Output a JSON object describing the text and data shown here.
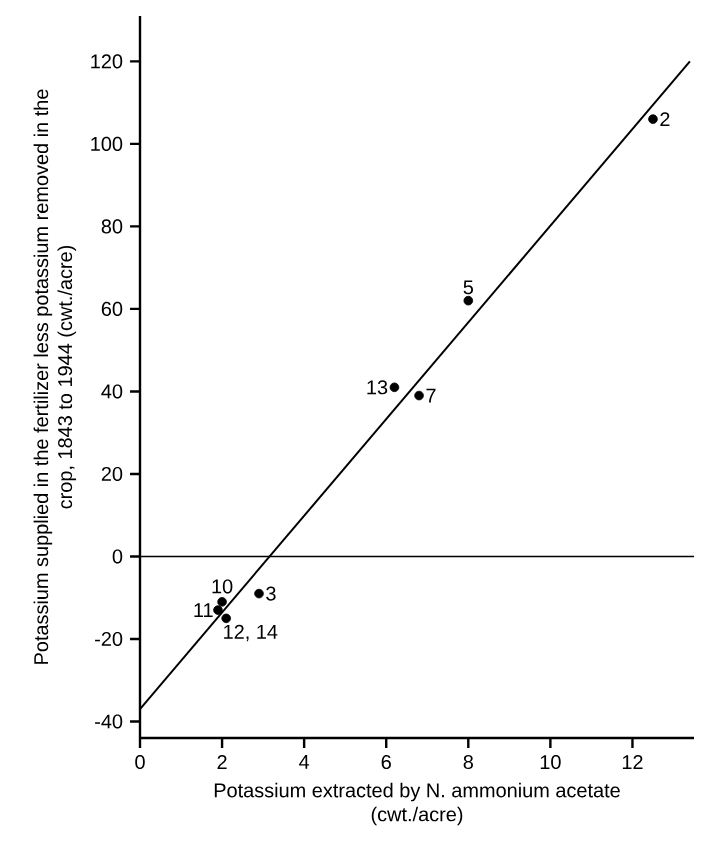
{
  "chart_data": {
    "type": "scatter",
    "xlabel": "Potassium extracted by N. ammonium acetate (cwt./acre)",
    "ylabel": "Potassium supplied in the fertilizer less potassium removed in the crop, 1843 to 1944 (cwt./acre)",
    "series": [
      {
        "color": "#000000",
        "marker": "circle",
        "x": [
          12.5,
          8.0,
          6.2,
          6.8,
          2.9,
          2.0,
          1.9,
          2.1
        ],
        "values": [
          106,
          62,
          41,
          39,
          -9,
          -11,
          -13,
          -15
        ]
      },
      {
        "type": "line",
        "color": "#000000",
        "marker": "none",
        "line_style": "solid",
        "x": [
          0,
          13.4
        ],
        "values": [
          -37,
          120
        ]
      }
    ],
    "annotations": [
      {
        "text": "2",
        "x": 12.5,
        "y": 106
      },
      {
        "text": "5",
        "x": 8.0,
        "y": 62
      },
      {
        "text": "13",
        "x": 6.2,
        "y": 41
      },
      {
        "text": "7",
        "x": 6.8,
        "y": 39
      },
      {
        "text": "10",
        "x": 2.0,
        "y": -11
      },
      {
        "text": "3",
        "x": 2.9,
        "y": -9
      },
      {
        "text": "11",
        "x": 1.9,
        "y": -13
      },
      {
        "text": "12, 14",
        "x": 2.1,
        "y": -15
      }
    ],
    "ref_lines": [
      {
        "axis": "y",
        "value": 0,
        "color": "#000000"
      }
    ],
    "xlim": [
      0,
      13.5
    ],
    "ylim": [
      -44,
      131
    ],
    "xticks": [
      0,
      2,
      4,
      6,
      8,
      10,
      12
    ],
    "yticks": [
      -40,
      -20,
      0,
      20,
      40,
      60,
      80,
      100,
      120
    ],
    "grid": false
  }
}
